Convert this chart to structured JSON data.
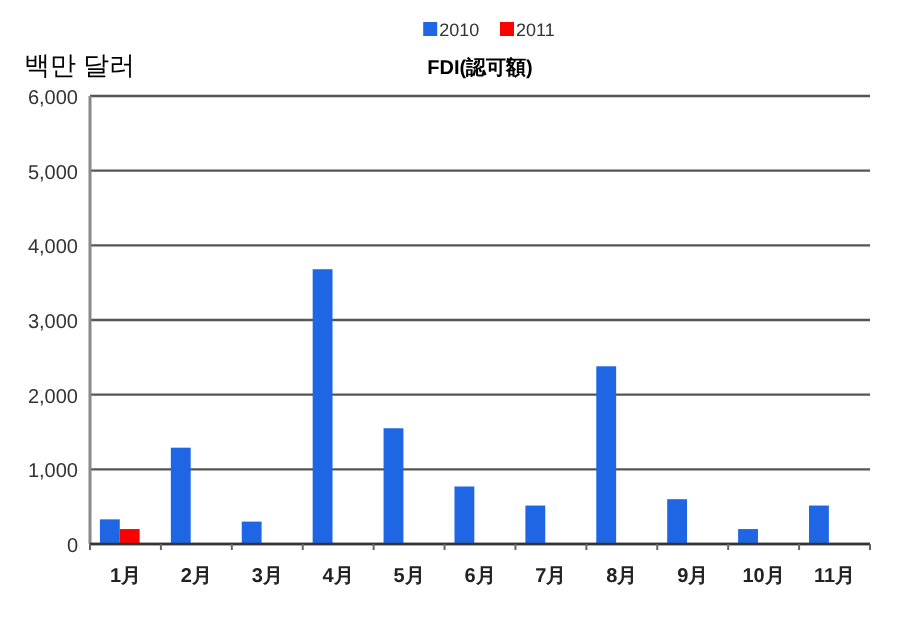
{
  "chart_data": {
    "type": "bar",
    "title": "FDI(認可額)",
    "ylabel": "백만 달러",
    "categories": [
      "1月",
      "2月",
      "3月",
      "4月",
      "5月",
      "6月",
      "7月",
      "8月",
      "9月",
      "10月",
      "11月"
    ],
    "series": [
      {
        "name": "2010",
        "color": "#1f66e5",
        "values": [
          330,
          1290,
          300,
          3680,
          1550,
          770,
          515,
          2380,
          600,
          200,
          515
        ]
      },
      {
        "name": "2011",
        "color": "#ff0000",
        "values": [
          200,
          null,
          null,
          null,
          null,
          null,
          null,
          null,
          null,
          null,
          null
        ]
      }
    ],
    "ylim": [
      0,
      6000
    ],
    "yticks": [
      {
        "value": 0,
        "label": "0"
      },
      {
        "value": 1000,
        "label": "1,000"
      },
      {
        "value": 2000,
        "label": "2,000"
      },
      {
        "value": 3000,
        "label": "3,000"
      },
      {
        "value": 4000,
        "label": "4,000"
      },
      {
        "value": 5000,
        "label": "5,000"
      },
      {
        "value": 6000,
        "label": "6,000"
      }
    ],
    "grid": "y",
    "legend": "top"
  }
}
